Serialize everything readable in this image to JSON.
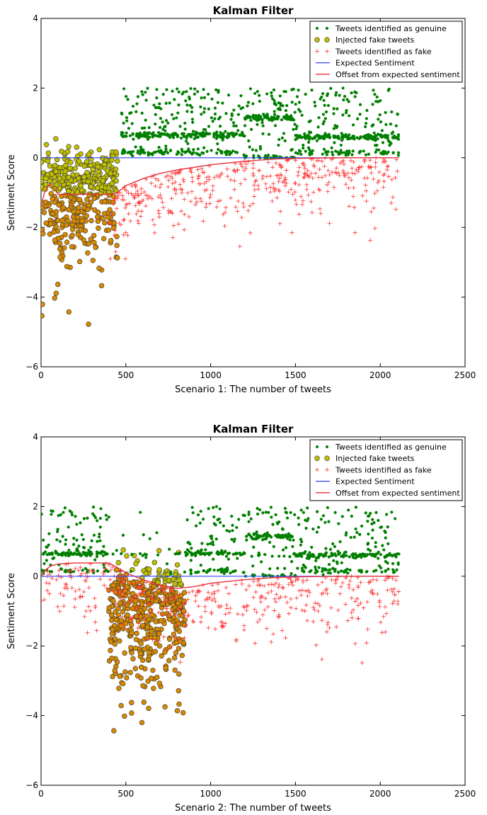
{
  "colors": {
    "genuine": "#007f00",
    "injected_fill": "#bfbf00",
    "injected_overlap_fill": "#d78a00",
    "fake_marker": "#ff3333",
    "expected_line": "#3344ff",
    "offset_line": "#e8303a"
  },
  "chart_data": [
    {
      "type": "scatter",
      "title": "Kalman Filter",
      "xlabel": "Scenario  1: The number of tweets",
      "ylabel": "Sentiment Score",
      "xlim": [
        0,
        2500
      ],
      "ylim": [
        -6,
        4
      ],
      "xticks": [
        "0",
        "500",
        "1000",
        "1500",
        "2000",
        "2500"
      ],
      "yticks": [
        "4",
        "2",
        "0",
        "−2",
        "−4",
        "−6"
      ],
      "legend_position": "top-right",
      "legend": [
        "Tweets identified as genuine",
        "Injected fake tweets",
        "Tweets identified as fake",
        "Expected Sentiment",
        "Offset from expected sentiment"
      ],
      "series": [
        {
          "name": "Tweets identified as genuine",
          "marker": "dot",
          "x_range": [
            470,
            2110
          ],
          "y_range": [
            0,
            2.6
          ]
        },
        {
          "name": "Injected fake tweets",
          "marker": "circle",
          "x_range": [
            0,
            450
          ],
          "y_range": [
            -5.3,
            1.4
          ]
        },
        {
          "name": "Tweets identified as fake",
          "marker": "plus",
          "x_range": [
            400,
            2110
          ],
          "y_range": [
            -2.9,
            0
          ]
        },
        {
          "name": "Expected Sentiment",
          "marker": "line",
          "x": [
            0,
            2110
          ],
          "y": [
            0,
            0
          ]
        },
        {
          "name": "Offset from expected sentiment",
          "marker": "line",
          "x": [
            0,
            20,
            50,
            80,
            100,
            150,
            200,
            300,
            400,
            450,
            500,
            600,
            700,
            800,
            1000,
            1200,
            1400,
            1600,
            1800,
            2000,
            2110
          ],
          "y": [
            -1.4,
            -1.0,
            -0.75,
            -0.9,
            -1.05,
            -1.05,
            -1.05,
            -1.05,
            -1.05,
            -1.0,
            -0.8,
            -0.6,
            -0.45,
            -0.35,
            -0.2,
            -0.1,
            -0.03,
            -0.01,
            0,
            0,
            0
          ]
        }
      ]
    },
    {
      "type": "scatter",
      "title": "Kalman Filter",
      "xlabel": "Scenario  2: The number of tweets",
      "ylabel": "Sentiment Score",
      "xlim": [
        0,
        2500
      ],
      "ylim": [
        -6,
        4
      ],
      "xticks": [
        "0",
        "500",
        "1000",
        "1500",
        "2000",
        "2500"
      ],
      "yticks": [
        "4",
        "2",
        "0",
        "−2",
        "−4",
        "−6"
      ],
      "legend_position": "top-right",
      "legend": [
        "Tweets identified as genuine",
        "Injected fake tweets",
        "Tweets identified as fake",
        "Expected Sentiment",
        "Offset from expected sentiment"
      ],
      "series": [
        {
          "name": "Tweets identified as genuine",
          "marker": "dot",
          "x_range": [
            0,
            2110
          ],
          "y_range": [
            0,
            2.6
          ]
        },
        {
          "name": "Injected fake tweets",
          "marker": "circle",
          "x_range": [
            400,
            850
          ],
          "y_range": [
            -5.3,
            1.4
          ]
        },
        {
          "name": "Tweets identified as fake",
          "marker": "plus",
          "x_range": [
            0,
            2110
          ],
          "y_range": [
            -2.9,
            0.4
          ]
        },
        {
          "name": "Expected Sentiment",
          "marker": "line",
          "x": [
            0,
            2110
          ],
          "y": [
            0,
            0
          ]
        },
        {
          "name": "Offset from expected sentiment",
          "marker": "line",
          "x": [
            0,
            30,
            60,
            100,
            200,
            300,
            400,
            450,
            500,
            600,
            700,
            800,
            900,
            1000,
            1200,
            1400,
            1600,
            1800,
            2000,
            2110
          ],
          "y": [
            0,
            0.2,
            0.3,
            0.35,
            0.38,
            0.38,
            0.38,
            0.25,
            0.1,
            -0.1,
            -0.25,
            -0.35,
            -0.3,
            -0.2,
            -0.1,
            -0.03,
            -0.01,
            0,
            0,
            0
          ]
        }
      ]
    }
  ]
}
